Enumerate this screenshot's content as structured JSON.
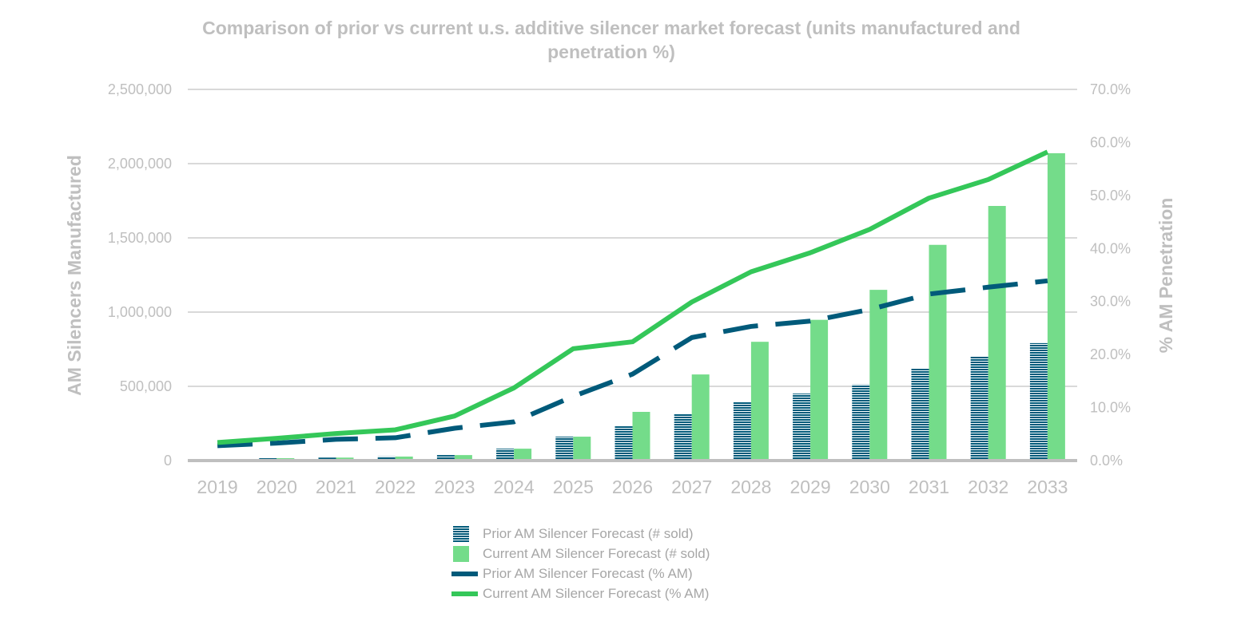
{
  "chart_data": {
    "type": "bar",
    "title": "Comparison of prior vs current u.s. additive silencer market forecast (units manufactured and penetration %)",
    "ylabel": "AM Silencers Manufactured",
    "y2label": "% AM Penetration",
    "ylim": [
      0,
      2500000
    ],
    "y2lim": [
      0,
      70
    ],
    "yticks": [
      "0",
      "500,000",
      "1,000,000",
      "1,500,000",
      "2,000,000",
      "2,500,000"
    ],
    "y2ticks": [
      "0.0%",
      "10.0%",
      "20.0%",
      "30.0%",
      "40.0%",
      "50.0%",
      "60.0%",
      "70.0%"
    ],
    "grid": true,
    "legend_position": "bottom",
    "categories": [
      "2019",
      "2020",
      "2021",
      "2022",
      "2023",
      "2024",
      "2025",
      "2026",
      "2027",
      "2028",
      "2029",
      "2030",
      "2031",
      "2032",
      "2033"
    ],
    "series": [
      {
        "name": "Prior AM Silencer Forecast (# sold)",
        "type": "bar",
        "axis": "left",
        "color": "#005a7a",
        "values": [
          5000,
          16000,
          20000,
          28000,
          37000,
          80000,
          161000,
          231000,
          312000,
          394000,
          451000,
          512000,
          618000,
          704000,
          791000
        ]
      },
      {
        "name": "Current AM Silencer Forecast (# sold)",
        "type": "bar",
        "axis": "left",
        "color": "#74dc8a",
        "values": [
          5000,
          16000,
          20000,
          27000,
          37000,
          80000,
          161000,
          328000,
          580000,
          800000,
          948000,
          1150000,
          1453000,
          1715000,
          2070000
        ]
      },
      {
        "name": "Prior AM Silencer Forecast (% AM)",
        "type": "line",
        "axis": "right",
        "color": "#005a7a",
        "dashed": true,
        "values": [
          2.8,
          3.3,
          4.0,
          4.3,
          6.1,
          7.3,
          12.1,
          16.3,
          23.2,
          25.3,
          26.3,
          28.5,
          31.4,
          32.7,
          33.9
        ]
      },
      {
        "name": "Current AM Silencer Forecast (% AM)",
        "type": "line",
        "axis": "right",
        "color": "#34c759",
        "values": [
          3.4,
          4.2,
          5.1,
          5.8,
          8.4,
          13.7,
          21.1,
          22.4,
          29.9,
          35.6,
          39.2,
          43.6,
          49.5,
          53.0,
          58.2
        ]
      }
    ]
  }
}
